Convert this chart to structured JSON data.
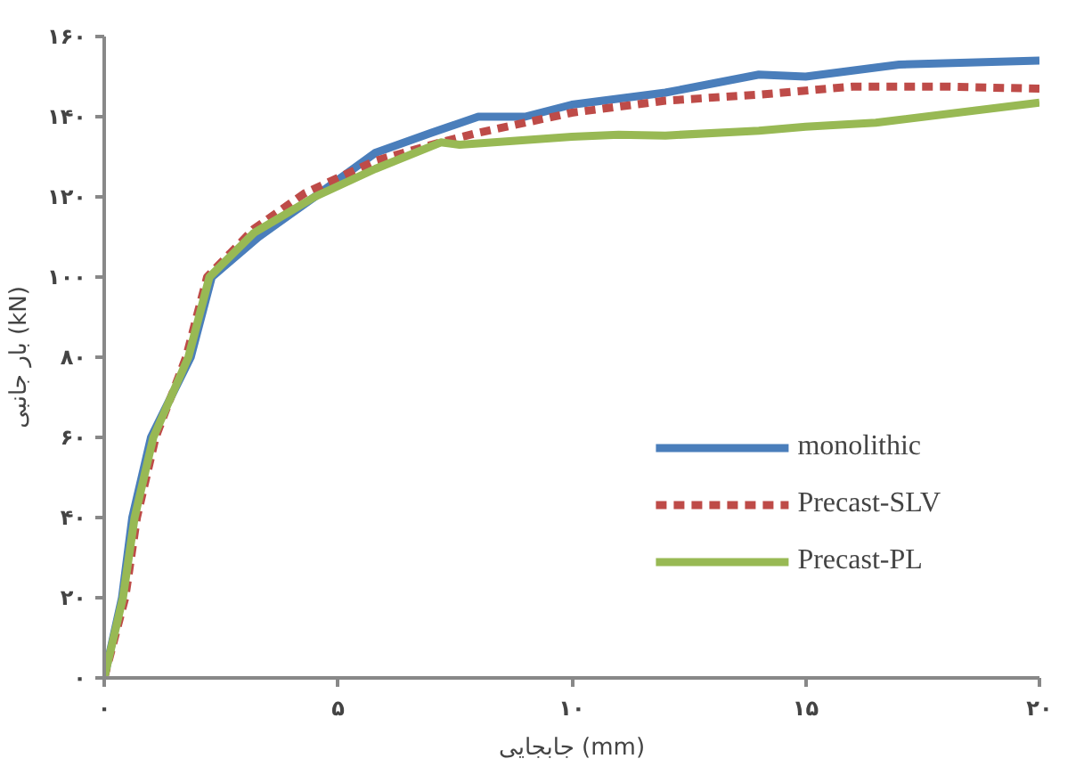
{
  "chart_data": {
    "type": "line",
    "xlabel": "جابجایی (mm)",
    "ylabel": "بار جانبی (kN)",
    "xlim": [
      0,
      20
    ],
    "ylim": [
      0,
      160
    ],
    "xticks": [
      {
        "value": 0,
        "label": "۰"
      },
      {
        "value": 5,
        "label": "۵"
      },
      {
        "value": 10,
        "label": "۱۰"
      },
      {
        "value": 15,
        "label": "۱۵"
      },
      {
        "value": 20,
        "label": "۲۰"
      }
    ],
    "yticks": [
      {
        "value": 0,
        "label": "۰"
      },
      {
        "value": 20,
        "label": "۲۰"
      },
      {
        "value": 40,
        "label": "۴۰"
      },
      {
        "value": 60,
        "label": "۶۰"
      },
      {
        "value": 80,
        "label": "۸۰"
      },
      {
        "value": 100,
        "label": "۱۰۰"
      },
      {
        "value": 120,
        "label": "۱۲۰"
      },
      {
        "value": 140,
        "label": "۱۴۰"
      },
      {
        "value": 160,
        "label": "۱۶۰"
      }
    ],
    "grid": false,
    "legend": "bottom right",
    "series": [
      {
        "name": "monolithic",
        "color": "#4a7ebb",
        "line_style": "solid",
        "x": [
          0,
          0.38,
          0.6,
          1.0,
          1.85,
          2.3,
          3.3,
          4.5,
          5.8,
          7.0,
          8.0,
          9.0,
          10.0,
          12.0,
          14.0,
          15.0,
          17.0,
          20.0
        ],
        "values": [
          0,
          20,
          40,
          60,
          80,
          100,
          110,
          120,
          131,
          136,
          140,
          140,
          143,
          146,
          150.5,
          150,
          153,
          154
        ]
      },
      {
        "name": "Precast-SLV",
        "color": "#be4b48",
        "line_style": "dashed",
        "x": [
          0,
          0.45,
          0.7,
          1.1,
          1.75,
          2.2,
          3.2,
          4.3,
          5.8,
          7.0,
          8.0,
          10.0,
          12.0,
          14.0,
          16.0,
          18.0,
          20.0
        ],
        "values": [
          0,
          20,
          40,
          60,
          80,
          100,
          112,
          121,
          129,
          133,
          136,
          141,
          144,
          145.5,
          147.5,
          147.5,
          147
        ]
      },
      {
        "name": "Precast-PL",
        "color": "#98b954",
        "line_style": "solid",
        "x": [
          0,
          0.4,
          0.65,
          1.05,
          1.8,
          2.25,
          3.2,
          4.5,
          5.8,
          7.2,
          7.6,
          10.0,
          11.0,
          12.0,
          14.0,
          15.0,
          16.5,
          20.0
        ],
        "values": [
          0,
          20,
          40,
          60,
          80,
          100,
          111,
          120,
          127,
          133.6,
          133,
          135,
          135.5,
          135.3,
          136.5,
          137.5,
          138.5,
          143.5
        ]
      }
    ]
  }
}
